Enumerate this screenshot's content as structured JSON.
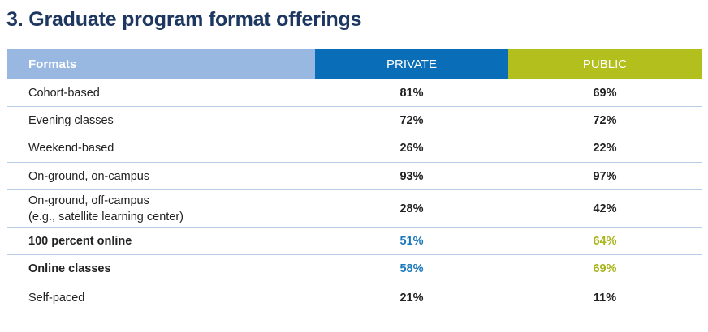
{
  "title": "3. Graduate program format offerings",
  "colors": {
    "title": "#1d3761",
    "formats_header": "#98b8e2",
    "private_header": "#0a6db8",
    "public_header": "#b2bf1d",
    "private_highlight": "#1a78be",
    "public_highlight": "#a9b51a",
    "divider": "#b9cde6"
  },
  "chart_data": {
    "type": "table",
    "title": "3. Graduate program format offerings",
    "columns": [
      "Formats",
      "PRIVATE",
      "PUBLIC"
    ],
    "rows": [
      {
        "label": "Cohort-based",
        "private": "81%",
        "public": "69%",
        "bold": false,
        "highlight": false
      },
      {
        "label": "Evening classes",
        "private": "72%",
        "public": "72%",
        "bold": false,
        "highlight": false
      },
      {
        "label": "Weekend-based",
        "private": "26%",
        "public": "22%",
        "bold": false,
        "highlight": false
      },
      {
        "label": "On-ground, on-campus",
        "private": "93%",
        "public": "97%",
        "bold": false,
        "highlight": false
      },
      {
        "label": "On-ground, off-campus",
        "label_line2": "(e.g., satellite learning center)",
        "private": "28%",
        "public": "42%",
        "bold": false,
        "highlight": false
      },
      {
        "label": "100 percent online",
        "private": "51%",
        "public": "64%",
        "bold": true,
        "highlight": true
      },
      {
        "label": "Online classes",
        "private": "58%",
        "public": "69%",
        "bold": true,
        "highlight": true
      },
      {
        "label": "Self-paced",
        "private": "21%",
        "public": "11%",
        "bold": false,
        "highlight": false
      }
    ]
  }
}
